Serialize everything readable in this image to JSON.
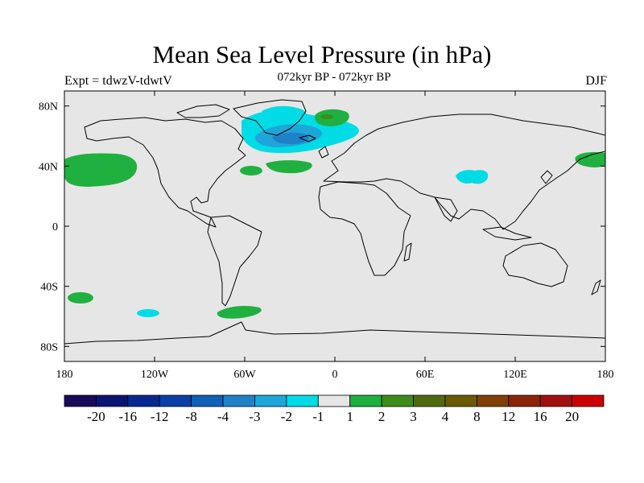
{
  "title": "Mean Sea Level Pressure (in hPa)",
  "experiment_label": "Expt = tdwzV-tdwtV",
  "period_label": "072kyr BP - 072kyr BP",
  "season_label": "DJF",
  "map": {
    "projection": "cylindrical equidistant",
    "lon_range": [
      -180,
      180
    ],
    "lat_range": [
      -90,
      90
    ],
    "background_color": "#e6e6e6",
    "x_ticks": [
      "180",
      "120W",
      "60W",
      "0",
      "60E",
      "120E",
      "180"
    ],
    "y_ticks": [
      "80N",
      "40N",
      "0",
      "40S",
      "80S"
    ]
  },
  "colorbar": {
    "colors": [
      "#1a0a5a",
      "#0b1470",
      "#082890",
      "#0a3fa5",
      "#1060b8",
      "#1f82c8",
      "#1ea6d8",
      "#00dce6",
      "#e6e6e6",
      "#1fb040",
      "#3c8c1c",
      "#506a10",
      "#6a5a06",
      "#7e4008",
      "#8c2408",
      "#a01010",
      "#cc0000"
    ],
    "labels": [
      "-20",
      "-16",
      "-12",
      "-8",
      "-4",
      "-3",
      "-2",
      "-1",
      "1",
      "2",
      "3",
      "4",
      "8",
      "12",
      "16",
      "20"
    ]
  },
  "anomalies": [
    {
      "region": "North Atlantic",
      "lon": -35,
      "lat": 63,
      "sign": "negative",
      "level": "-4 to -3"
    },
    {
      "region": "Central Asia",
      "lon": 95,
      "lat": 34,
      "sign": "negative",
      "level": "-2 to -1"
    },
    {
      "region": "Southeast Pacific",
      "lon": -125,
      "lat": -58,
      "sign": "negative",
      "level": "-2 to -1"
    },
    {
      "region": "North Pacific (west of Americas)",
      "lon": -155,
      "lat": 40,
      "sign": "positive",
      "level": "1 to 2"
    },
    {
      "region": "North Pacific (east of Asia)",
      "lon": 175,
      "lat": 44,
      "sign": "positive",
      "level": "1 to 2"
    },
    {
      "region": "Central North Atlantic",
      "lon": -30,
      "lat": 41,
      "sign": "positive",
      "level": "1 to 2"
    },
    {
      "region": "Barents Sea",
      "lon": 5,
      "lat": 73,
      "sign": "positive",
      "level": "1 to 3"
    },
    {
      "region": "South Atlantic / Drake Passage",
      "lon": -60,
      "lat": -57,
      "sign": "positive",
      "level": "1 to 2"
    },
    {
      "region": "South Pacific",
      "lon": -170,
      "lat": -47,
      "sign": "positive",
      "level": "1 to 2"
    }
  ]
}
